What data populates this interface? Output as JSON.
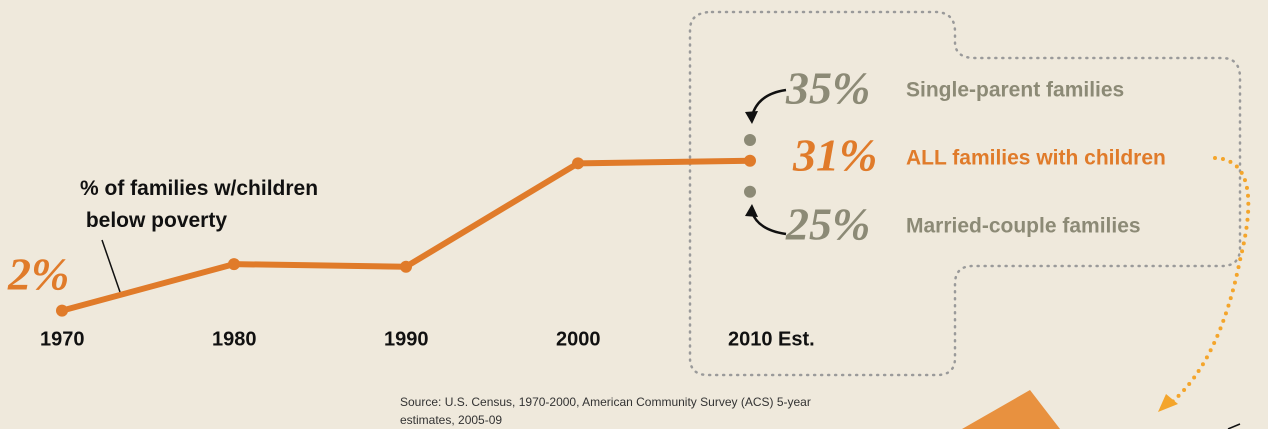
{
  "chart_data": {
    "type": "line",
    "categories": [
      "1970",
      "1980",
      "1990",
      "2000",
      "2010 Est."
    ],
    "series": [
      {
        "name": "% of families w/children below poverty",
        "color": "#e07b2a",
        "values": [
          2,
          11,
          10.5,
          30.5,
          31
        ],
        "value_labels": [
          "2%",
          null,
          null,
          null,
          "31%"
        ]
      }
    ],
    "total_label": "ALL families with children",
    "breakdown": [
      {
        "name": "Single-parent families",
        "value": 35,
        "value_label": "35%",
        "color": "#8c8a76"
      },
      {
        "name": "Married-couple families",
        "value": 25,
        "value_label": "25%",
        "color": "#8c8a76"
      }
    ],
    "source": [
      "Source: U.S. Census, 1970-2000, American Community Survey (ACS) 5-year",
      "estimates, 2005-09"
    ]
  }
}
